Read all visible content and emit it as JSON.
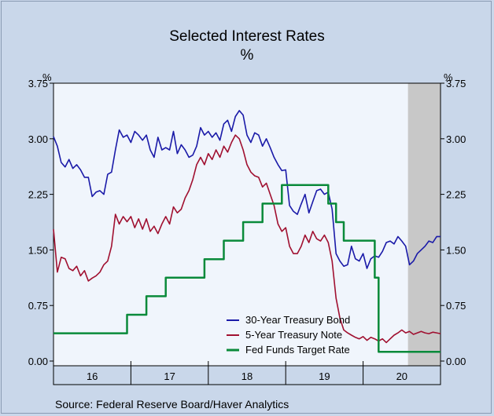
{
  "chart_data": {
    "type": "line",
    "title": "Selected Interest Rates",
    "subtitle": "%",
    "yunit_left": "%",
    "yunit_right": "%",
    "ylim": [
      0,
      3.75
    ],
    "yticks": [
      "0.00",
      "0.75",
      "1.50",
      "2.25",
      "3.00",
      "3.75"
    ],
    "ytick_values": [
      0,
      0.75,
      1.5,
      2.25,
      3.0,
      3.75
    ],
    "xlim": [
      2015.5,
      2020.5
    ],
    "x_categories": [
      "16",
      "17",
      "18",
      "19",
      "20"
    ],
    "x_category_centers": [
      2016.0,
      2017.0,
      2018.0,
      2019.0,
      2020.0
    ],
    "year_boundaries": [
      2016.5,
      2017.5,
      2018.5,
      2019.5
    ],
    "recession_shade": {
      "start": 2020.08,
      "end": 2020.5,
      "color": "#c8c8c8"
    },
    "plot_background": "#f0f5fc",
    "grid": false,
    "legend_position": "bottom-right",
    "source": "Source:  Federal Reserve Board/Haver Analytics",
    "series": [
      {
        "name": "30-Year Treasury Bond",
        "color": "#1a1aa8",
        "x": [
          2015.5,
          2015.55,
          2015.6,
          2015.65,
          2015.7,
          2015.75,
          2015.8,
          2015.85,
          2015.9,
          2015.95,
          2016.0,
          2016.05,
          2016.1,
          2016.15,
          2016.2,
          2016.25,
          2016.3,
          2016.35,
          2016.4,
          2016.45,
          2016.5,
          2016.55,
          2016.6,
          2016.65,
          2016.7,
          2016.75,
          2016.8,
          2016.85,
          2016.9,
          2016.95,
          2017.0,
          2017.05,
          2017.1,
          2017.15,
          2017.2,
          2017.25,
          2017.3,
          2017.35,
          2017.4,
          2017.45,
          2017.5,
          2017.55,
          2017.6,
          2017.65,
          2017.7,
          2017.75,
          2017.8,
          2017.85,
          2017.9,
          2017.95,
          2018.0,
          2018.05,
          2018.1,
          2018.15,
          2018.2,
          2018.25,
          2018.3,
          2018.35,
          2018.4,
          2018.45,
          2018.5,
          2018.55,
          2018.6,
          2018.65,
          2018.7,
          2018.75,
          2018.8,
          2018.85,
          2018.9,
          2018.95,
          2019.0,
          2019.05,
          2019.1,
          2019.15,
          2019.2,
          2019.25,
          2019.3,
          2019.35,
          2019.4,
          2019.45,
          2019.5,
          2019.55,
          2019.6,
          2019.65,
          2019.7,
          2019.75,
          2019.8,
          2019.85,
          2019.9,
          2019.95,
          2020.0,
          2020.05,
          2020.1,
          2020.15,
          2020.2,
          2020.25,
          2020.3,
          2020.35,
          2020.4,
          2020.45,
          2020.5
        ],
        "values": [
          3.03,
          2.9,
          2.68,
          2.62,
          2.72,
          2.6,
          2.65,
          2.58,
          2.48,
          2.48,
          2.22,
          2.28,
          2.3,
          2.25,
          2.52,
          2.55,
          2.85,
          3.12,
          3.02,
          3.05,
          2.95,
          3.1,
          3.05,
          2.98,
          3.05,
          2.85,
          2.75,
          3.02,
          2.85,
          2.88,
          2.85,
          3.1,
          2.8,
          2.92,
          2.85,
          2.75,
          2.78,
          2.9,
          3.15,
          3.05,
          3.1,
          3.02,
          3.08,
          2.98,
          3.2,
          3.25,
          3.1,
          3.3,
          3.38,
          3.32,
          3.05,
          2.95,
          3.08,
          3.05,
          2.9,
          3.0,
          2.88,
          2.75,
          2.65,
          2.57,
          2.58,
          2.1,
          2.02,
          1.98,
          2.12,
          2.25,
          2.0,
          2.15,
          2.3,
          2.32,
          2.25,
          2.28,
          2.05,
          1.45,
          1.35,
          1.28,
          1.3,
          1.55,
          1.38,
          1.35,
          1.45,
          1.25,
          1.38,
          1.42,
          1.4,
          1.48,
          1.6,
          1.62,
          1.58,
          1.68,
          1.62,
          1.55,
          1.3,
          1.35,
          1.45,
          1.5,
          1.55,
          1.62,
          1.6,
          1.68,
          1.68
        ]
      },
      {
        "name": "5-Year Treasury Note",
        "color": "#a01030",
        "x": [
          2015.5,
          2015.55,
          2015.6,
          2015.65,
          2015.7,
          2015.75,
          2015.8,
          2015.85,
          2015.9,
          2015.95,
          2016.0,
          2016.05,
          2016.1,
          2016.15,
          2016.2,
          2016.25,
          2016.3,
          2016.35,
          2016.4,
          2016.45,
          2016.5,
          2016.55,
          2016.6,
          2016.65,
          2016.7,
          2016.75,
          2016.8,
          2016.85,
          2016.9,
          2016.95,
          2017.0,
          2017.05,
          2017.1,
          2017.15,
          2017.2,
          2017.25,
          2017.3,
          2017.35,
          2017.4,
          2017.45,
          2017.5,
          2017.55,
          2017.6,
          2017.65,
          2017.7,
          2017.75,
          2017.8,
          2017.85,
          2017.9,
          2017.95,
          2018.0,
          2018.05,
          2018.1,
          2018.15,
          2018.2,
          2018.25,
          2018.3,
          2018.35,
          2018.4,
          2018.45,
          2018.5,
          2018.55,
          2018.6,
          2018.65,
          2018.7,
          2018.75,
          2018.8,
          2018.85,
          2018.9,
          2018.95,
          2019.0,
          2019.05,
          2019.1,
          2019.15,
          2019.2,
          2019.25,
          2019.3,
          2019.35,
          2019.4,
          2019.45,
          2019.5,
          2019.55,
          2019.6,
          2019.65,
          2019.7,
          2019.75,
          2019.8,
          2019.85,
          2019.9,
          2019.95,
          2020.0,
          2020.05,
          2020.1,
          2020.15,
          2020.2,
          2020.25,
          2020.3,
          2020.35,
          2020.4,
          2020.45,
          2020.5
        ],
        "values": [
          1.78,
          1.2,
          1.4,
          1.38,
          1.25,
          1.22,
          1.28,
          1.15,
          1.22,
          1.08,
          1.12,
          1.15,
          1.2,
          1.3,
          1.35,
          1.55,
          1.98,
          1.85,
          1.95,
          1.88,
          1.95,
          1.8,
          1.92,
          1.78,
          1.92,
          1.75,
          1.82,
          1.72,
          1.85,
          1.95,
          1.85,
          2.08,
          2.0,
          2.05,
          2.2,
          2.3,
          2.45,
          2.65,
          2.75,
          2.65,
          2.8,
          2.72,
          2.85,
          2.75,
          2.9,
          2.82,
          2.95,
          3.05,
          3.0,
          2.85,
          2.65,
          2.55,
          2.5,
          2.48,
          2.35,
          2.4,
          2.25,
          2.1,
          1.85,
          1.75,
          1.8,
          1.55,
          1.45,
          1.45,
          1.55,
          1.7,
          1.6,
          1.75,
          1.65,
          1.62,
          1.7,
          1.6,
          1.35,
          0.85,
          0.58,
          0.42,
          0.38,
          0.35,
          0.32,
          0.3,
          0.33,
          0.28,
          0.32,
          0.3,
          0.27,
          0.3,
          0.25,
          0.3,
          0.35,
          0.38,
          0.42,
          0.38,
          0.4,
          0.36,
          0.38,
          0.4,
          0.38,
          0.37,
          0.39,
          0.38,
          0.37
        ]
      },
      {
        "name": "Fed Funds Target Rate",
        "color": "#0a8a3a",
        "step": true,
        "x": [
          2015.5,
          2016.45,
          2016.7,
          2016.95,
          2017.2,
          2017.45,
          2017.7,
          2017.95,
          2018.2,
          2018.45,
          2018.7,
          2019.05,
          2019.15,
          2019.25,
          2019.35,
          2019.65,
          2019.7,
          2020.5
        ],
        "values": [
          0.375,
          0.625,
          0.875,
          1.125,
          1.125,
          1.375,
          1.625,
          1.875,
          2.125,
          2.375,
          2.375,
          2.125,
          1.875,
          1.625,
          1.625,
          1.125,
          0.125,
          0.125
        ]
      }
    ]
  }
}
